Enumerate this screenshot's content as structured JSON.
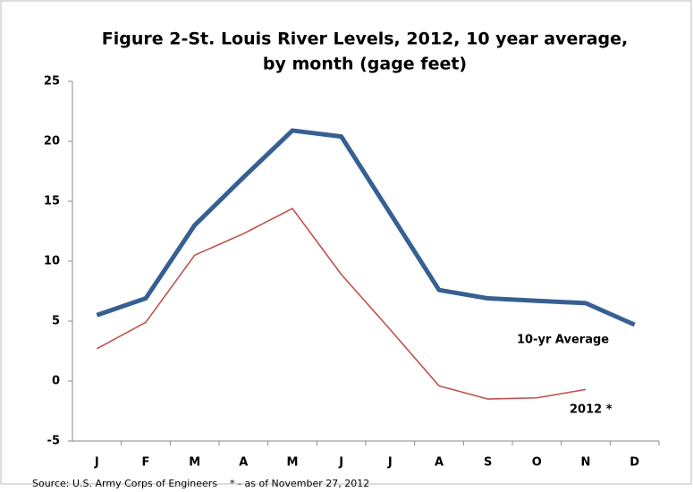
{
  "chart_data": {
    "type": "line",
    "title": [
      "Figure 2-St. Louis River Levels, 2012, 10 year average,",
      "by month (gage feet)"
    ],
    "categories": [
      "J",
      "F",
      "M",
      "A",
      "M",
      "J",
      "J",
      "A",
      "S",
      "O",
      "N",
      "D"
    ],
    "series": [
      {
        "name": "10-yr Average",
        "color": "#376092",
        "values": [
          5.5,
          6.9,
          13.0,
          17.0,
          20.9,
          20.4,
          14.0,
          7.6,
          6.9,
          6.7,
          6.5,
          4.7
        ]
      },
      {
        "name": "2012 *",
        "color": "#c0504d",
        "values": [
          2.7,
          4.9,
          10.5,
          12.3,
          14.4,
          8.9,
          4.3,
          -0.4,
          -1.5,
          -1.4,
          -0.7,
          null
        ]
      }
    ],
    "ylim": [
      -5,
      25
    ],
    "yticks": [
      -5,
      0,
      5,
      10,
      15,
      20,
      25
    ],
    "grid": false,
    "source": "Source: U.S. Army Corps of Engineers    * - as of November 27, 2012"
  }
}
